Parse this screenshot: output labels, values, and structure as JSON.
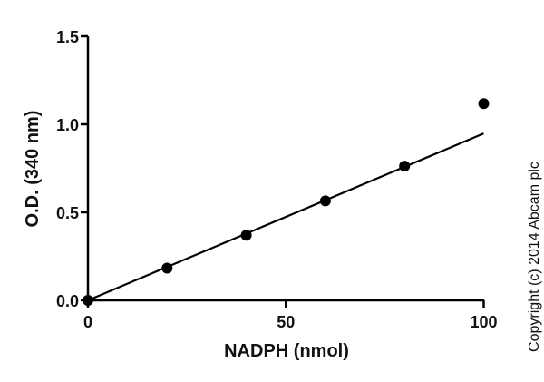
{
  "chart_data": {
    "type": "scatter",
    "title": "",
    "xlabel": "NADPH (nmol)",
    "ylabel": "O.D. (340 nm)",
    "xlim": [
      0,
      100
    ],
    "ylim": [
      0,
      1.5
    ],
    "xticks": [
      "0",
      "50",
      "100"
    ],
    "yticks": [
      "0.0",
      "0.5",
      "1.0",
      "1.5"
    ],
    "grid": false,
    "series": [
      {
        "x": [
          0,
          20,
          40,
          60,
          80,
          100
        ],
        "y": [
          0.0,
          0.183,
          0.37,
          0.565,
          0.762,
          1.117
        ],
        "marker": "circle",
        "color": "#000000"
      }
    ],
    "fit_line": {
      "x": [
        0,
        100
      ],
      "y": [
        0.0,
        0.948
      ],
      "color": "#000000"
    }
  },
  "copyright": "Copyright (c) 2014 Abcam plc"
}
